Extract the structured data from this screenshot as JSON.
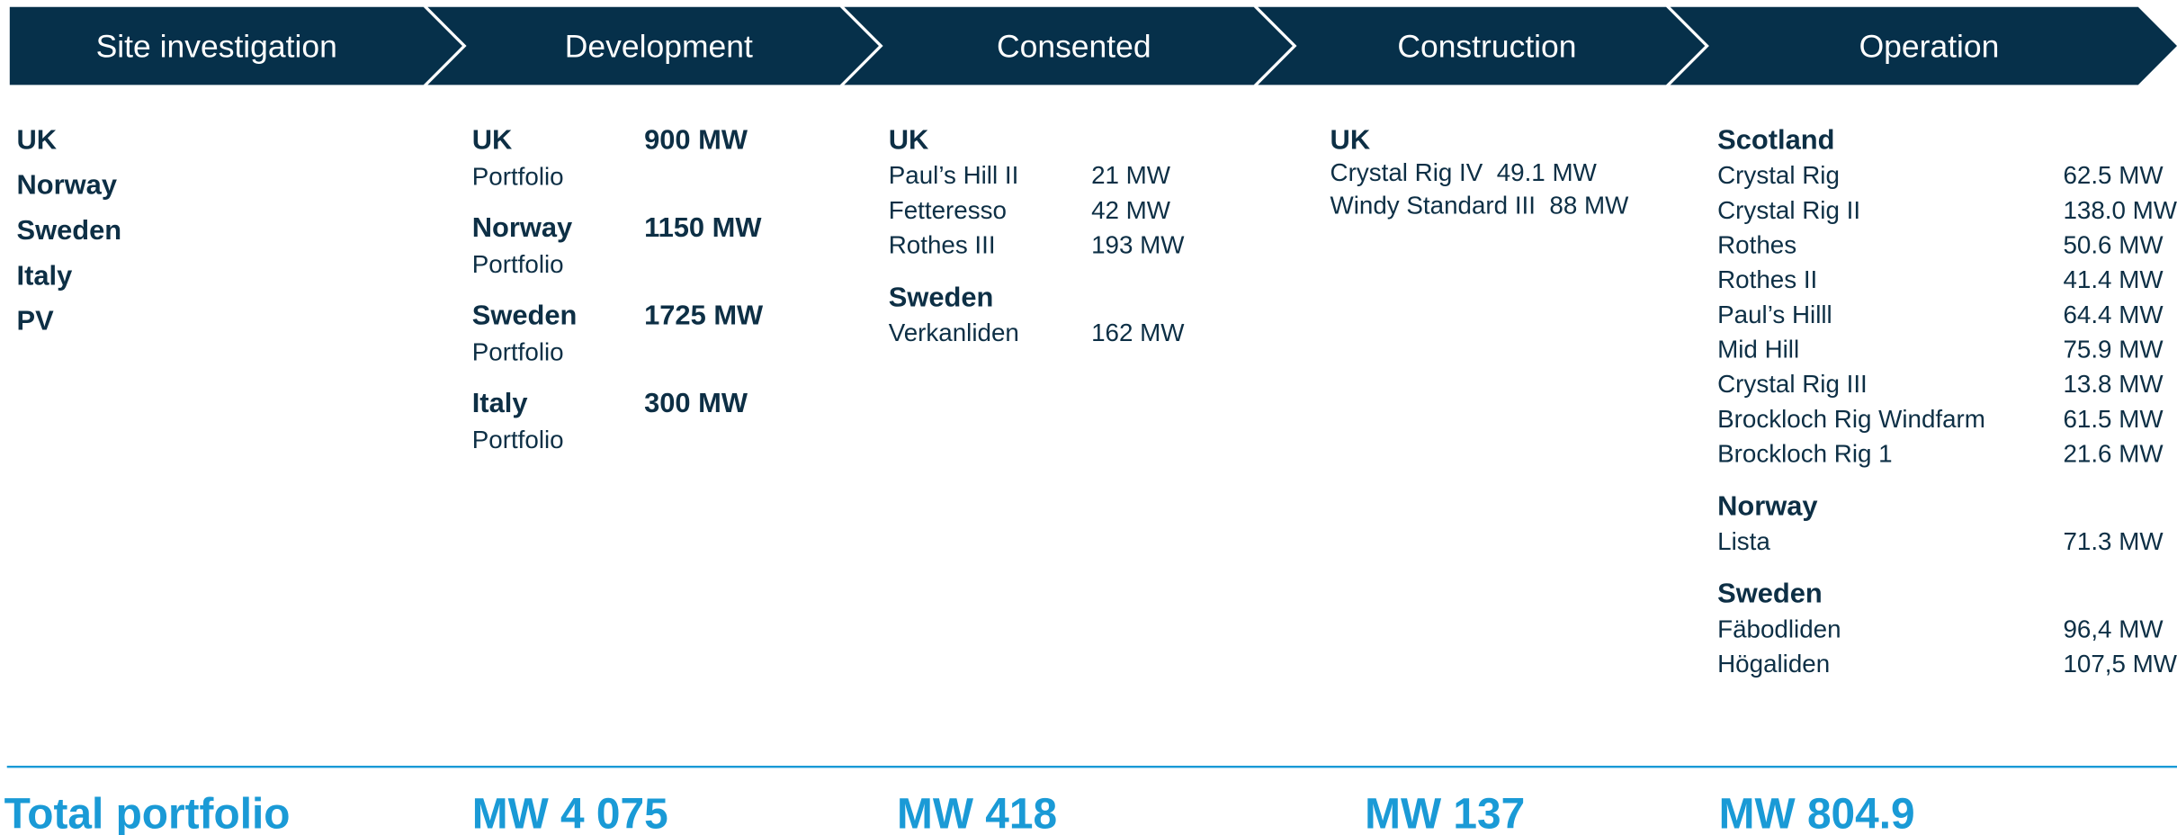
{
  "stages": [
    {
      "label": "Site investigation",
      "groups": [
        {
          "name": "UK"
        },
        {
          "name": "Norway"
        },
        {
          "name": "Sweden"
        },
        {
          "name": "Italy"
        },
        {
          "name": "PV"
        }
      ]
    },
    {
      "label": "Development",
      "groups": [
        {
          "name": "UK",
          "value": "900 MW",
          "sub": "Portfolio"
        },
        {
          "name": "Norway",
          "value": "1150 MW",
          "sub": "Portfolio"
        },
        {
          "name": "Sweden",
          "value": "1725 MW",
          "sub": "Portfolio"
        },
        {
          "name": "Italy",
          "value": "300 MW",
          "sub": "Portfolio"
        }
      ],
      "total": "MW 4 075"
    },
    {
      "label": "Consented",
      "groups": [
        {
          "name": "UK",
          "items": [
            {
              "name": "Paul’s Hill II",
              "value": "21 MW"
            },
            {
              "name": "Fetteresso",
              "value": "42 MW"
            },
            {
              "name": "Rothes III",
              "value": "193 MW"
            }
          ]
        },
        {
          "name": "Sweden",
          "items": [
            {
              "name": "Verkanliden",
              "value": "162 MW"
            }
          ]
        }
      ],
      "total": "MW 418"
    },
    {
      "label": "Construction",
      "groups": [
        {
          "name": "UK",
          "items": [
            {
              "name": "Crystal Rig IV",
              "value": "49.1 MW"
            },
            {
              "name": "Windy Standard III",
              "value": "88 MW"
            }
          ]
        }
      ],
      "total": "MW 137"
    },
    {
      "label": "Operation",
      "groups": [
        {
          "name": "Scotland",
          "items": [
            {
              "name": "Crystal Rig",
              "value": "62.5 MW"
            },
            {
              "name": "Crystal Rig II",
              "value": "138.0 MW"
            },
            {
              "name": "Rothes",
              "value": "50.6 MW"
            },
            {
              "name": "Rothes II",
              "value": "41.4 MW"
            },
            {
              "name": "Paul’s Hilll",
              "value": "64.4 MW"
            },
            {
              "name": "Mid Hill",
              "value": "75.9 MW"
            },
            {
              "name": "Crystal Rig III",
              "value": "13.8 MW"
            },
            {
              "name": "Brockloch Rig Windfarm",
              "value": "61.5 MW"
            },
            {
              "name": "Brockloch Rig 1",
              "value": "21.6 MW"
            }
          ]
        },
        {
          "name": "Norway",
          "items": [
            {
              "name": "Lista",
              "value": "71.3 MW"
            }
          ]
        },
        {
          "name": "Sweden",
          "items": [
            {
              "name": "Fäbodliden",
              "value": "96,4 MW"
            },
            {
              "name": "Högaliden",
              "value": "107,5 MW"
            }
          ]
        }
      ],
      "total": "MW 804.9"
    }
  ],
  "total_label": "Total portfolio"
}
